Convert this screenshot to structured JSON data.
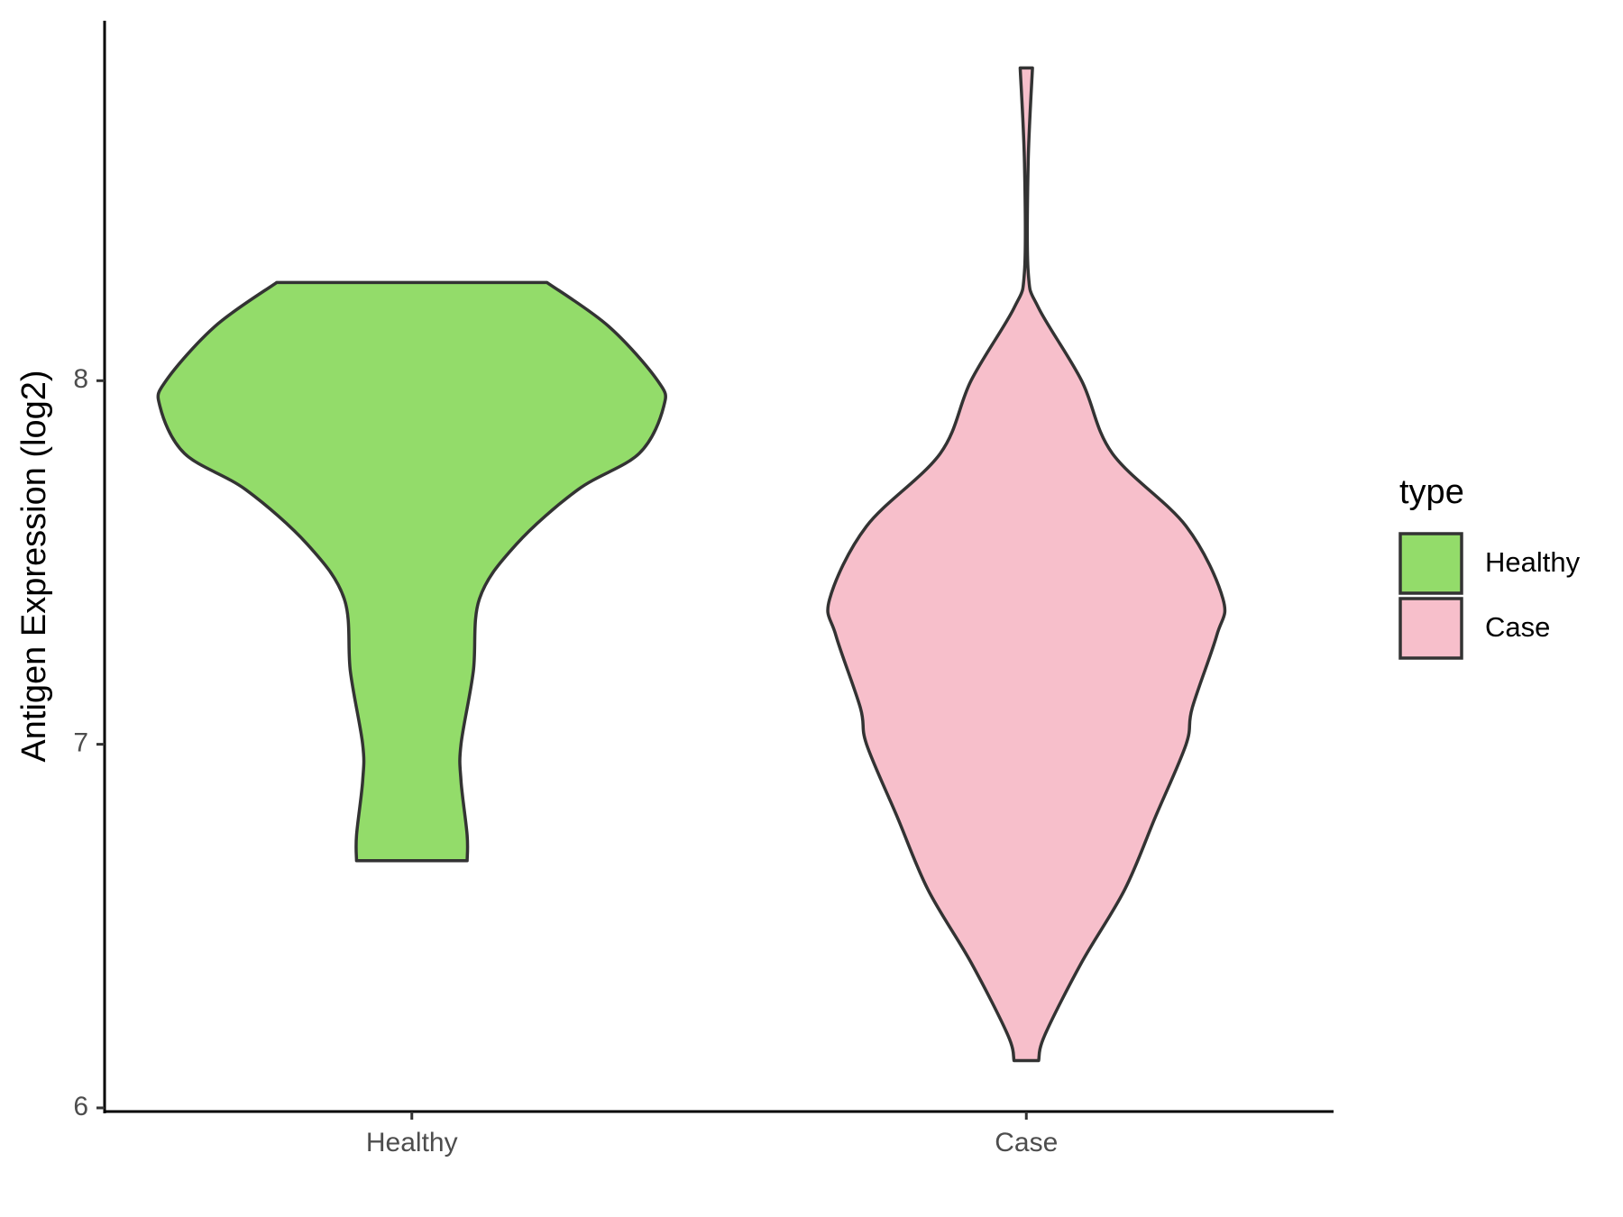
{
  "chart_data": {
    "type": "violin",
    "y_label": "Antigen Expression (log2)",
    "categories": [
      "Healthy",
      "Case"
    ],
    "legend_title": "type",
    "legend_position": "right",
    "ylim": [
      5.99,
      8.99
    ],
    "yticks": [
      6,
      7,
      8
    ],
    "grid": false,
    "series": [
      {
        "name": "Healthy",
        "color": "#93dc6a",
        "values": [
          8.27,
          8.15,
          8.0,
          7.93,
          7.8,
          7.7,
          7.55,
          7.4,
          7.2,
          7.0,
          6.9,
          6.75,
          6.68
        ],
        "widths": [
          0.22,
          0.32,
          0.4,
          0.41,
          0.37,
          0.27,
          0.17,
          0.11,
          0.1,
          0.08,
          0.08,
          0.09,
          0.09
        ]
      },
      {
        "name": "Case",
        "color": "#f7bfcb",
        "values": [
          8.86,
          8.6,
          8.3,
          8.2,
          8.0,
          7.8,
          7.6,
          7.4,
          7.3,
          7.1,
          7.0,
          6.8,
          6.6,
          6.4,
          6.2,
          6.13
        ],
        "widths": [
          0.01,
          0.003,
          0.003,
          0.02,
          0.09,
          0.14,
          0.26,
          0.32,
          0.31,
          0.27,
          0.26,
          0.21,
          0.16,
          0.09,
          0.03,
          0.02
        ]
      }
    ]
  }
}
